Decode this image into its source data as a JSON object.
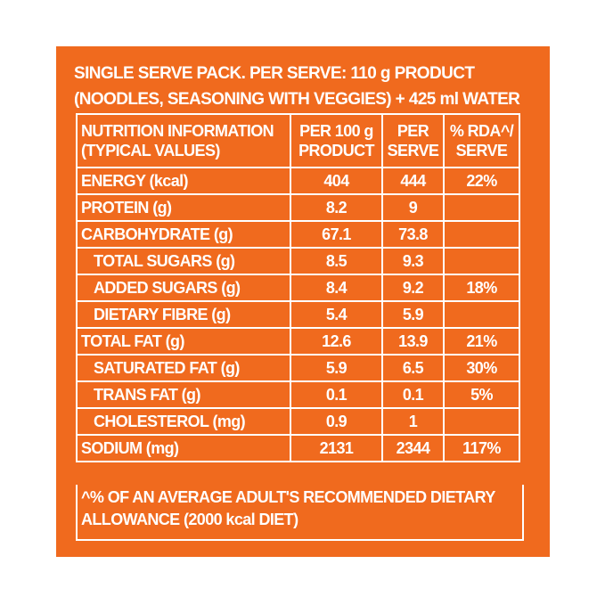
{
  "heading": [
    "SINGLE SERVE PACK. PER SERVE: 110 g PRODUCT",
    "(NOODLES, SEASONING WITH VEGGIES) + 425 ml WATER"
  ],
  "table": {
    "header": [
      [
        "NUTRITION INFORMATION",
        "(TYPICAL VALUES)"
      ],
      [
        "PER 100 g",
        "PRODUCT"
      ],
      [
        "PER",
        "SERVE"
      ],
      [
        "% RDA^/",
        "SERVE"
      ]
    ],
    "rows": [
      [
        "ENERGY (kcal)",
        404,
        444,
        "22%"
      ],
      [
        "PROTEIN (g)",
        8.2,
        9,
        null
      ],
      [
        "CARBOHYDRATE (g)",
        67.1,
        73.8,
        null
      ],
      [
        "TOTAL SUGARS (g)",
        8.5,
        9.3,
        null
      ],
      [
        "ADDED SUGARS (g)",
        8.4,
        9.2,
        "18%"
      ],
      [
        "DIETARY FIBRE (g)",
        5.4,
        5.9,
        null
      ],
      [
        "TOTAL FAT (g)",
        12.6,
        13.9,
        "21%"
      ],
      [
        "SATURATED FAT (g)",
        5.9,
        6.5,
        "30%"
      ],
      [
        "TRANS FAT (g)",
        0.1,
        0.1,
        "5%"
      ],
      [
        "CHOLESTEROL (mg)",
        0.9,
        1,
        null
      ],
      [
        "SODIUM (mg)",
        2131,
        2344,
        "117%"
      ]
    ]
  },
  "footnote": [
    "^% OF AN AVERAGE ADULT'S RECOMMENDED DIETARY",
    "ALLOWANCE (2000 kcal DIET)"
  ]
}
